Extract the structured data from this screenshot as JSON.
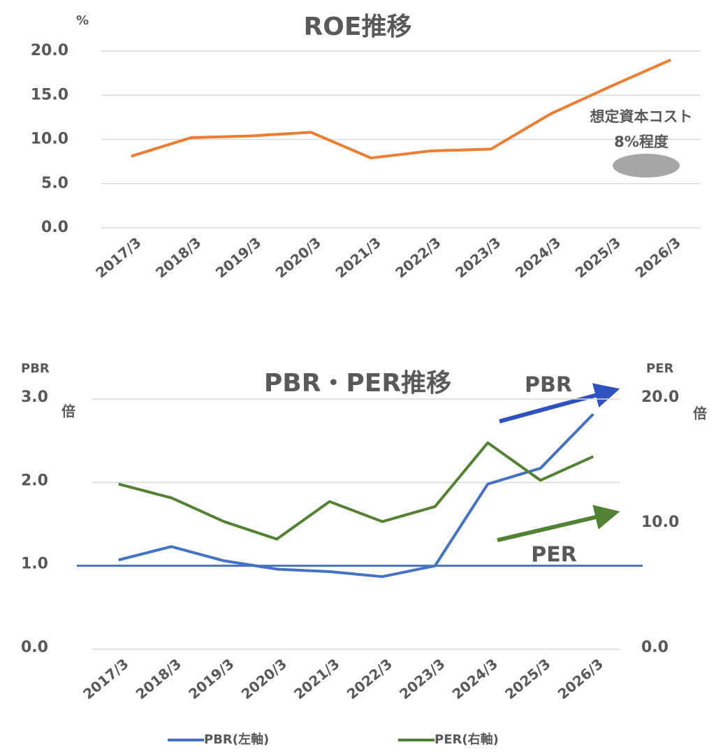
{
  "chart_data": [
    {
      "type": "line",
      "title": "ROE推移",
      "y_label": "%",
      "categories": [
        "2017/3",
        "2018/3",
        "2019/3",
        "2020/3",
        "2021/3",
        "2022/3",
        "2023/3",
        "2024/3",
        "2025/3",
        "2026/3"
      ],
      "series": [
        {
          "name": "ROE",
          "color": "#ed7d31",
          "values": [
            8.1,
            10.2,
            10.4,
            10.8,
            7.9,
            8.7,
            8.9,
            12.9,
            16.0,
            19.0
          ]
        }
      ],
      "ylim": [
        0,
        20
      ],
      "yticks": [
        {
          "value": 0,
          "label": "0.0"
        },
        {
          "value": 5,
          "label": "5.0"
        },
        {
          "value": 10,
          "label": "10.0"
        },
        {
          "value": 15,
          "label": "15.0"
        },
        {
          "value": 20,
          "label": "20.0"
        }
      ],
      "grid": true,
      "legend": false,
      "annotation": [
        "想定資本コスト",
        "8%程度"
      ]
    },
    {
      "type": "line",
      "title": "PBR・PER推移",
      "y_label": "PBR",
      "y_unit": "倍",
      "y2_label": "PER",
      "y2_unit": "倍",
      "categories": [
        "2017/3",
        "2018/3",
        "2019/3",
        "2020/3",
        "2021/3",
        "2022/3",
        "2023/3",
        "2024/3",
        "2025/3",
        "2026/3"
      ],
      "series": [
        {
          "name": "PBR(左軸)",
          "color": "#4472c4",
          "values": [
            1.07,
            1.23,
            1.06,
            0.96,
            0.93,
            0.87,
            1.0,
            1.98,
            2.17,
            2.82
          ]
        },
        {
          "name": "PER(右軸)",
          "color": "#548235",
          "axis": "y2",
          "values": [
            13.2,
            12.1,
            10.2,
            8.8,
            11.8,
            10.2,
            11.4,
            16.5,
            13.5,
            15.4
          ]
        }
      ],
      "ylim": [
        0,
        3
      ],
      "yticks": [
        {
          "value": 0,
          "label": "0.0"
        },
        {
          "value": 1,
          "label": "1.0"
        },
        {
          "value": 2,
          "label": "2.0"
        },
        {
          "value": 3,
          "label": "3.0"
        }
      ],
      "y2lim": [
        0,
        20
      ],
      "y2ticks": [
        {
          "value": 0,
          "label": "0.0"
        },
        {
          "value": 10,
          "label": "10.0"
        },
        {
          "value": 20,
          "label": "20.0"
        }
      ],
      "reference_line": {
        "value": 1,
        "color": "#4472c4"
      },
      "grid": true,
      "legend": "bottom",
      "annotations": [
        "PBR",
        "PER"
      ]
    }
  ]
}
